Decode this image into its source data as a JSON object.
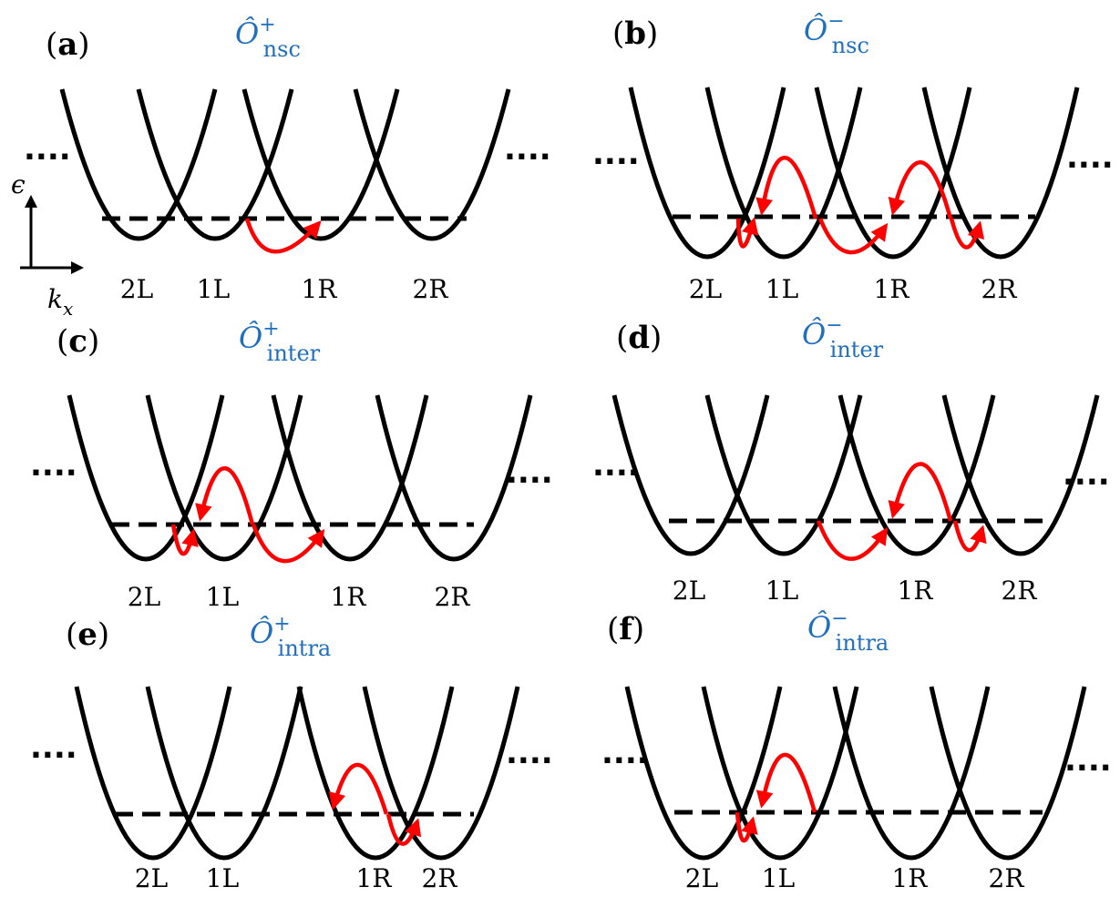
{
  "colors": {
    "curve": "#000000",
    "arrow": "#ff0000",
    "operator": "#1f6fbf",
    "fermi": "#000000"
  },
  "axis": {
    "energy": "ϵ",
    "momentum_base": "k",
    "momentum_sub": "x"
  },
  "ellipsis": "....",
  "panels": [
    {
      "label_open": "(",
      "label_letter": "a",
      "label_close": ")",
      "operator": {
        "symbol": "Ô",
        "sup": "+",
        "sub": "nsc"
      },
      "valleys": [
        "2L",
        "1L",
        "1R",
        "2R"
      ]
    },
    {
      "label_open": "(",
      "label_letter": "b",
      "label_close": ")",
      "operator": {
        "symbol": "Ô",
        "sup": "−",
        "sub": "nsc"
      },
      "valleys": [
        "2L",
        "1L",
        "1R",
        "2R"
      ]
    },
    {
      "label_open": "(",
      "label_letter": "c",
      "label_close": ")",
      "operator": {
        "symbol": "Ô",
        "sup": "+",
        "sub": "inter"
      },
      "valleys": [
        "2L",
        "1L",
        "1R",
        "2R"
      ]
    },
    {
      "label_open": "(",
      "label_letter": "d",
      "label_close": ")",
      "operator": {
        "symbol": "Ô",
        "sup": "−",
        "sub": "inter"
      },
      "valleys": [
        "2L",
        "1L",
        "1R",
        "2R"
      ]
    },
    {
      "label_open": "(",
      "label_letter": "e",
      "label_close": ")",
      "operator": {
        "symbol": "Ô",
        "sup": "+",
        "sub": "intra"
      },
      "valleys": [
        "2L",
        "1L",
        "1R",
        "2R"
      ]
    },
    {
      "label_open": "(",
      "label_letter": "f",
      "label_close": ")",
      "operator": {
        "symbol": "Ô",
        "sup": "−",
        "sub": "intra"
      },
      "valleys": [
        "2L",
        "1L",
        "1R",
        "2R"
      ]
    }
  ]
}
